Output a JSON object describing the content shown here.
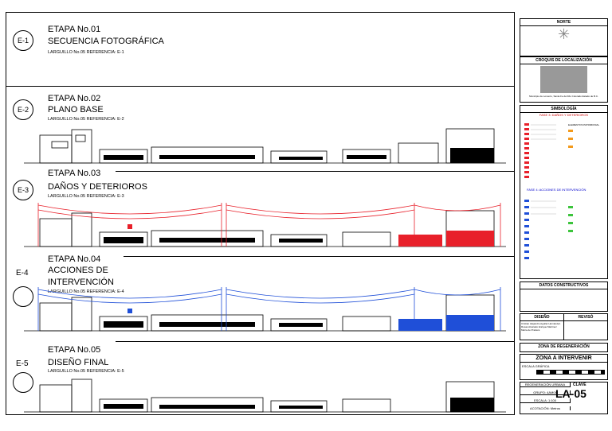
{
  "stages": [
    {
      "tag": "E-1",
      "title1": "ETAPA No.01",
      "title2": "SECUENCIA FOTOGRÁFICA",
      "title3": "",
      "ref": "LARGUILLO No.05   REFERENCIA: E-1"
    },
    {
      "tag": "E-2",
      "title1": "ETAPA No.02",
      "title2": "PLANO BASE",
      "title3": "",
      "ref": "LARGUILLO No.05   REFERENCIA: E-2"
    },
    {
      "tag": "E-3",
      "title1": "ETAPA No.03",
      "title2": "DAÑOS Y DETERIOROS",
      "title3": "",
      "ref": "LARGUILLO No.05   REFERENCIA: E-3"
    },
    {
      "tag": "E-4",
      "title1": "ETAPA No.04",
      "title2": "ACCIONES DE",
      "title3": "INTERVENCIÓN",
      "ref": "LARGUILLO No.05   REFERENCIA: E-4"
    },
    {
      "tag": "E-5",
      "title1": "ETAPA No.05",
      "title2": "DISEÑO FINAL",
      "title3": "",
      "ref": "LARGUILLO No.05   REFERENCIA: E-5"
    }
  ],
  "panel": {
    "norte": "NORTE",
    "croquis": "CROQUIS DE LOCALIZACIÓN",
    "croquis_note": "Municipio de Lomerío, Santa Fe del Rio Colorado Estado de B.C.",
    "simbologia": "SIMBOLOGÍA",
    "fase3": "FASE 3: DAÑOS Y DETERIOROS",
    "elemento_patrimonial": "ELEMENTOS PATRIMONIAL",
    "fase4": "FASE 4: ACCIONES DE INTERVENCIÓN",
    "datos": "DATOS CONSTRUCTIVOS",
    "diseno": "DISEÑO",
    "reviso": "REVISÓ",
    "designers": "Cristian Alejandro Aguilar Hernández. Rosas Alvarado Enrique Martínez María de Pradera",
    "zona_regen": "ZONA DE REGENERACIÓN",
    "zona_intervenir": "ZONA A INTERVENIR",
    "escala_grafica": "ESCALA GRÁFICA",
    "regen_urbana": "REGENERACIÓN URBANA",
    "clave": "CLAVE",
    "grupo": "GRUPO: 4AM04",
    "escala": "ESCALA: 1:100",
    "acotacion": "ACOTACIÓN: Metros",
    "code": "LA-05"
  },
  "colors": {
    "damage": "#e8202a",
    "intervention": "#1f4fd8",
    "accent_orange": "#f39a1c",
    "accent_green": "#3cc43c"
  }
}
